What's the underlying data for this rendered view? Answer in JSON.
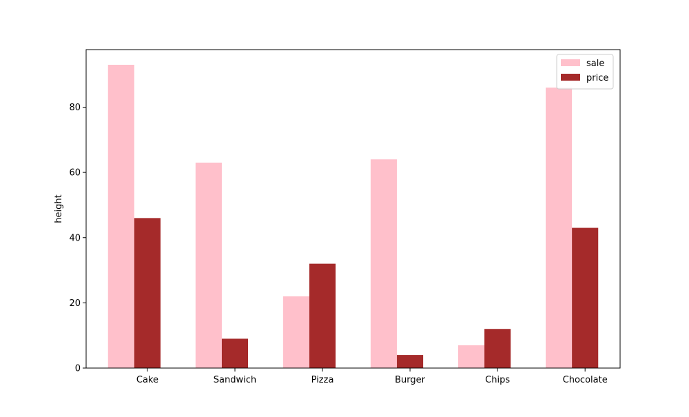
{
  "chart_data": {
    "type": "bar",
    "title": "",
    "xlabel": "",
    "ylabel": "height",
    "categories": [
      "Cake",
      "Sandwich",
      "Pizza",
      "Burger",
      "Chips",
      "Chocolate"
    ],
    "series": [
      {
        "name": "sale",
        "color": "#ffc0cb",
        "values": [
          93,
          63,
          22,
          64,
          7,
          86
        ]
      },
      {
        "name": "price",
        "color": "#a52a2a",
        "values": [
          46,
          9,
          32,
          4,
          12,
          43
        ]
      }
    ],
    "ylim": [
      0,
      97.65
    ],
    "yticks": [
      0,
      20,
      40,
      60,
      80
    ],
    "grid": false,
    "legend": "top-right"
  }
}
